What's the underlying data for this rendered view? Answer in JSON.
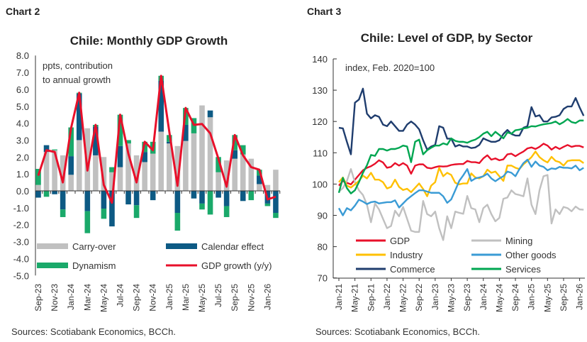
{
  "charts_header": {
    "left": "Chart 2",
    "right": "Chart 3"
  },
  "chart_data": [
    {
      "type": "bar",
      "title": "Chile: Monthly GDP Growth",
      "note": "ppts, contribution\nto annual growth",
      "ylim": [
        -5,
        8
      ],
      "yticks": [
        "8.0",
        "7.0",
        "6.0",
        "5.0",
        "4.0",
        "3.0",
        "2.0",
        "1.0",
        "0.0",
        "-1.0",
        "-2.0",
        "-3.0",
        "-4.0",
        "-5.0"
      ],
      "categories": [
        "Sep-23",
        "Oct-23",
        "Nov-23",
        "Dec-23",
        "Jan-24",
        "Feb-24",
        "Mar-24",
        "Apr-24",
        "May-24",
        "Jun-24",
        "Jul-24",
        "Aug-24",
        "Sep-24",
        "Oct-24",
        "Nov-24",
        "Dec-24",
        "Jan-25",
        "Feb-25",
        "Mar-25",
        "Apr-25",
        "May-25",
        "Jun-25",
        "Jul-25",
        "Aug-25",
        "Sep-25",
        "Oct-25",
        "Nov-25",
        "Dec-25",
        "Jan-26",
        "Feb-26"
      ],
      "xtick_labels": [
        "Sep-23",
        "Nov-23",
        "Jan-24",
        "Mar-24",
        "May-24",
        "Jul-24",
        "Sep-24",
        "Nov-24",
        "Jan-25",
        "Mar-25",
        "May-25",
        "Jul-25",
        "Sep-25",
        "Nov-25",
        "Jan-26"
      ],
      "series": [
        {
          "name": "Carry-over",
          "kind": "bar",
          "color": "#c0c0c0",
          "values": [
            0.35,
            2.3,
            2.4,
            2.1,
            0.95,
            3.0,
            3.7,
            2.1,
            2.0,
            1.1,
            1.4,
            2.8,
            2.1,
            1.7,
            2.2,
            3.5,
            2.8,
            2.65,
            2.95,
            3.4,
            5.05,
            4.35,
            1.1,
            1.8,
            1.9,
            2.15,
            1.9,
            0.4,
            0.35,
            1.25
          ]
        },
        {
          "name": "Calendar effect",
          "kind": "bar",
          "color": "#0d5a84",
          "values": [
            -0.4,
            0.4,
            -0.2,
            -1.1,
            1.1,
            2.75,
            -1.2,
            1.7,
            -1.05,
            -2.1,
            1.25,
            -0.8,
            -0.85,
            0.6,
            -0.55,
            3.0,
            0.1,
            -1.3,
            0.95,
            -0.45,
            -0.75,
            0.4,
            -0.4,
            -0.9,
            0.5,
            -0.6,
            0,
            0.5,
            -0.75,
            -1.3
          ]
        },
        {
          "name": "Dynamism",
          "kind": "bar",
          "color": "#1aa96a",
          "values": [
            0.95,
            -0.35,
            0.05,
            -0.45,
            1.7,
            0.05,
            -1.3,
            0.1,
            -0.6,
            0.3,
            1.85,
            0.2,
            -0.75,
            0.6,
            0.7,
            0.3,
            0.4,
            -1.05,
            1.0,
            0.9,
            -0.35,
            -1.4,
            0.9,
            -0.65,
            0.9,
            0.55,
            -0.55,
            0.35,
            -0.15,
            -0.3
          ]
        },
        {
          "name": "GDP growth (y/y)",
          "kind": "line",
          "color": "#e8102a",
          "values": [
            0.9,
            2.4,
            2.3,
            0.5,
            3.7,
            5.8,
            1.2,
            3.9,
            0.35,
            -0.7,
            4.5,
            2.2,
            0.5,
            2.9,
            2.4,
            6.8,
            3.5,
            0.3,
            4.9,
            3.9,
            3.95,
            3.4,
            1.9,
            0.25,
            3.3,
            2.1,
            1.4,
            1.25,
            -0.5,
            -0.35
          ]
        }
      ],
      "source": "Sources: Scotiabank Economics, BCCh."
    },
    {
      "type": "line",
      "title": "Chile: Level of GDP, by Sector",
      "note": "index, Feb. 2020=100",
      "ylim": [
        70,
        140
      ],
      "yticks": [
        "140",
        "130",
        "120",
        "110",
        "100",
        "90",
        "80",
        "70"
      ],
      "x_start": "Jan-21",
      "x_end": "Feb-26",
      "xtick_labels": [
        "Jan-21",
        "May-21",
        "Sep-21",
        "Jan-22",
        "May-22",
        "Sep-22",
        "Jan-23",
        "May-23",
        "Sep-23",
        "Jan-24",
        "May-24",
        "Sep-24",
        "Jan-25",
        "May-25",
        "Sep-25",
        "Jan-26"
      ],
      "series": [
        {
          "name": "GDP",
          "color": "#e8102a",
          "values": [
            99.5,
            101,
            100.4,
            99.9,
            101.4,
            102.9,
            104.4,
            105.2,
            105.7,
            106.5,
            107.6,
            106.9,
            105.2,
            105.5,
            106.7,
            105.9,
            106.7,
            105.9,
            103.3,
            105.9,
            106.3,
            106.3,
            105.2,
            105,
            105.4,
            105.7,
            105.6,
            105.7,
            106.1,
            106.3,
            106.4,
            106.4,
            107.4,
            107,
            107,
            106.7,
            108.2,
            109.2,
            107.8,
            108.2,
            107.6,
            107.9,
            109.5,
            109.7,
            108.9,
            109.7,
            110.4,
            111.4,
            111.7,
            111.2,
            111.9,
            112.9,
            112.3,
            111,
            111.9,
            111.2,
            111.9,
            112.5,
            111.9,
            112.2,
            112.2,
            111.7
          ]
        },
        {
          "name": "Mining",
          "color": "#c0c0c0",
          "values": [
            97.6,
            98.7,
            101,
            104.8,
            100.6,
            98,
            96.5,
            93.4,
            87.8,
            93.8,
            91.9,
            88.9,
            85.9,
            86.6,
            91.5,
            89.7,
            92.7,
            88.9,
            85.1,
            84.7,
            84.7,
            94.6,
            90.4,
            89.7,
            91.2,
            85.9,
            82.1,
            89.7,
            85.9,
            91.2,
            90.8,
            90.5,
            96.2,
            92.3,
            91.9,
            87.8,
            92.3,
            93.4,
            90.4,
            88.1,
            89.2,
            95.3,
            95.7,
            98,
            96.8,
            96.5,
            96.1,
            101.8,
            93.4,
            90.4,
            98,
            102.5,
            102.9,
            87.4,
            91.9,
            90.4,
            92.7,
            92.3,
            91.3,
            92.8,
            91.9,
            91.8
          ]
        },
        {
          "name": "Industry",
          "color": "#ffc000",
          "values": [
            100.6,
            102.1,
            99.5,
            98.9,
            99.9,
            101,
            102.7,
            101.8,
            103.6,
            101.4,
            101.4,
            100.6,
            98.6,
            99.1,
            101.4,
            99.1,
            98.1,
            98.5,
            97.4,
            98.8,
            100.2,
            98.4,
            96.1,
            99.5,
            100.6,
            105.2,
            102.5,
            103.6,
            102.9,
            100.4,
            99.9,
            100.2,
            100.2,
            103.4,
            102.1,
            101.8,
            102.5,
            104.6,
            103.6,
            104,
            102.5,
            101,
            105.9,
            105.9,
            105.2,
            104.8,
            106.3,
            107.4,
            108.6,
            110.4,
            108.6,
            107.6,
            106.9,
            108.7,
            107.4,
            107,
            105.9,
            107.4,
            107.6,
            107.6,
            107.6,
            106.7
          ]
        },
        {
          "name": "Other goods",
          "color": "#3a9bd5",
          "values": [
            92.3,
            90,
            92.3,
            91.6,
            93.1,
            95,
            94.4,
            93.6,
            94.2,
            94.4,
            93.8,
            94,
            94.2,
            94.2,
            94.8,
            92.5,
            93.8,
            95.1,
            96.1,
            97.1,
            98,
            98,
            97.6,
            97.2,
            97.2,
            97.2,
            96.1,
            94,
            95.1,
            98,
            101,
            102.8,
            104.8,
            101,
            101.8,
            102.1,
            102.5,
            103.3,
            101.8,
            100.9,
            101.8,
            102.5,
            104,
            103.6,
            102.5,
            104.8,
            106.7,
            107.8,
            105.5,
            107.2,
            105.9,
            105.5,
            104.4,
            105,
            104.8,
            105.5,
            105.2,
            105.2,
            105,
            105.9,
            104.4,
            105.2
          ]
        },
        {
          "name": "Commerce",
          "color": "#1f3d6e",
          "values": [
            118,
            117.8,
            113.5,
            109.5,
            126,
            127,
            130.5,
            122.5,
            121,
            122,
            121.5,
            119,
            118.5,
            120,
            118.5,
            117,
            117,
            119,
            120,
            119,
            117.5,
            114,
            111,
            112,
            112.5,
            118.5,
            118,
            114.5,
            114.5,
            112,
            112.5,
            112,
            112,
            111.5,
            111.7,
            112.5,
            114.6,
            114,
            113.5,
            113.5,
            114,
            116,
            117.3,
            116,
            115.5,
            115.5,
            118,
            118.5,
            124.6,
            121.6,
            122,
            120,
            120,
            121.3,
            121.5,
            122,
            124,
            124.8,
            124.8,
            127.5,
            124.5,
            121.8
          ]
        },
        {
          "name": "Services",
          "color": "#00a651",
          "values": [
            97.2,
            102,
            98.7,
            97,
            98,
            100.6,
            103.6,
            106,
            109.3,
            109,
            111.2,
            111.2,
            110.7,
            111.2,
            111.2,
            111.6,
            112.3,
            112,
            107,
            113.5,
            114.2,
            109.5,
            110.8,
            111.6,
            112.3,
            112.3,
            113,
            112.6,
            114.6,
            113.8,
            113.5,
            113.5,
            113.2,
            113.8,
            114.2,
            115,
            116.1,
            116.7,
            115.3,
            116.7,
            115.7,
            114.6,
            116.5,
            116.1,
            117.2,
            117.4,
            117.8,
            118,
            118.5,
            118.4,
            118.8,
            119.1,
            119.3,
            119.5,
            120,
            119.1,
            119.8,
            120.8,
            119.8,
            119.5,
            120.3,
            120.3
          ]
        }
      ],
      "source": "Sources: Scotiabank Economics, BCCh."
    }
  ]
}
